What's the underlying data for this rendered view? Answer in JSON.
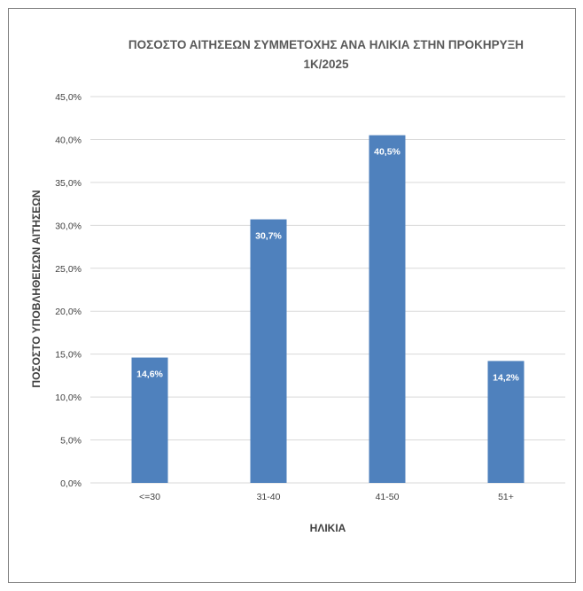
{
  "chart_data": {
    "type": "bar",
    "title_lines": [
      "ΠΟΣΟΣΤΟ ΑΙΤΗΣΕΩΝ ΣΥΜΜΕΤΟΧΗΣ ΑΝΑ ΗΛΙΚΙΑ ΣΤΗΝ ΠΡΟΚΗΡΥΞΗ",
      "1Κ/2025"
    ],
    "xlabel": "ΗΛΙΚΙΑ",
    "ylabel": "ΠΟΣΟΣΤΟ ΥΠΟΒΛΗΘΕΙΣΩΝ ΑΙΤΗΣΕΩΝ",
    "categories": [
      "<=30",
      "31-40",
      "41-50",
      "51+"
    ],
    "values": [
      14.6,
      30.7,
      40.5,
      14.2
    ],
    "data_labels": [
      "14,6%",
      "30,7%",
      "40,5%",
      "14,2%"
    ],
    "ylim": [
      0,
      45
    ],
    "ytick_values": [
      0,
      5,
      10,
      15,
      20,
      25,
      30,
      35,
      40,
      45
    ],
    "ytick_labels": [
      "0,0%",
      "5,0%",
      "10,0%",
      "15,0%",
      "20,0%",
      "25,0%",
      "30,0%",
      "35,0%",
      "40,0%",
      "45,0%"
    ],
    "grid": true,
    "legend": "none",
    "bar_color": "#4f81bd"
  }
}
